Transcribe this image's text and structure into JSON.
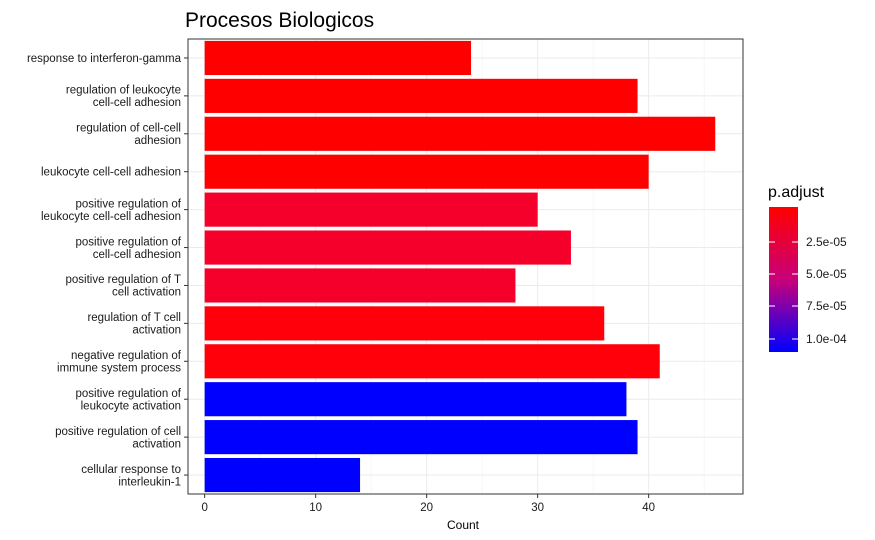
{
  "chart_data": {
    "type": "bar",
    "orientation": "horizontal",
    "title": "Procesos Biologicos",
    "xlabel": "Count",
    "ylabel": "",
    "xlim": [
      -1.5,
      48.5
    ],
    "x_ticks": [
      "0",
      "10",
      "20",
      "30",
      "40"
    ],
    "x_tick_values": [
      0,
      10,
      20,
      30,
      40
    ],
    "grid": true,
    "legend_position": "right",
    "categories": [
      [
        "response to interferon-gamma"
      ],
      [
        "regulation of leukocyte",
        "cell-cell adhesion"
      ],
      [
        "regulation of cell-cell",
        "adhesion"
      ],
      [
        "leukocyte cell-cell adhesion"
      ],
      [
        "positive regulation of",
        "leukocyte cell-cell adhesion"
      ],
      [
        "positive regulation of",
        "cell-cell adhesion"
      ],
      [
        "positive regulation of T",
        "cell activation"
      ],
      [
        "regulation of T cell",
        "activation"
      ],
      [
        "negative regulation of",
        "immune system process"
      ],
      [
        "positive regulation of",
        "leukocyte activation"
      ],
      [
        "positive regulation of cell",
        "activation"
      ],
      [
        "cellular response to",
        "interleukin-1"
      ]
    ],
    "values": [
      24,
      39,
      46,
      40,
      30,
      33,
      28,
      36,
      41,
      38,
      39,
      14
    ],
    "colors": [
      "#FF0000",
      "#FF0000",
      "#FF0000",
      "#FF0000",
      "#F5002A",
      "#F5002A",
      "#F5002A",
      "#FF000A",
      "#FF000A",
      "#0000FF",
      "#0000FF",
      "#0000FF"
    ],
    "legend": {
      "title": "p.adjust",
      "labels": [
        "2.5e-05",
        "5.0e-05",
        "7.5e-05",
        "1.0e-04"
      ],
      "gradient_top": "#FF0000",
      "gradient_bottom": "#0000FF"
    }
  }
}
